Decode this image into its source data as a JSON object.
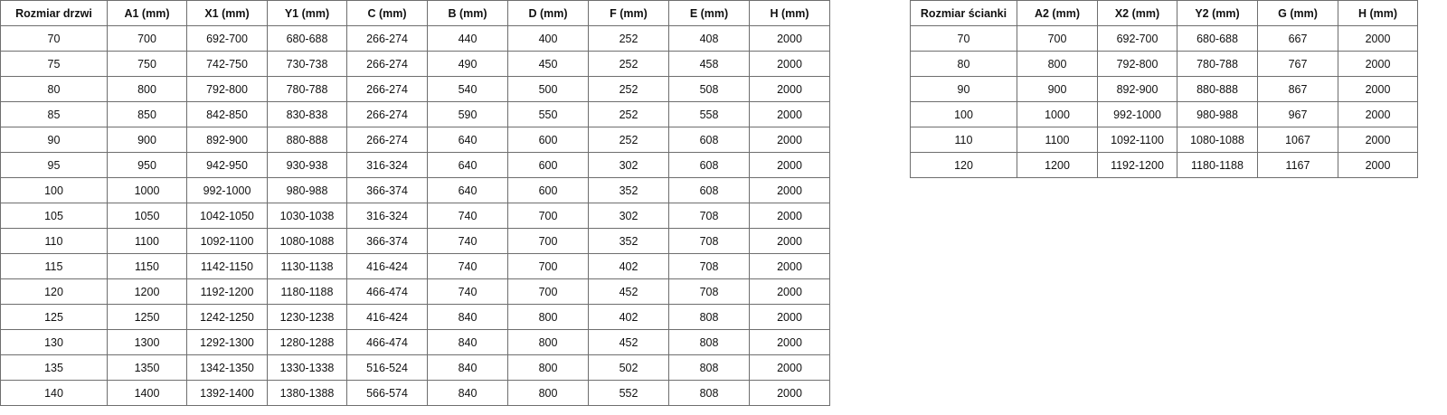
{
  "doors_table": {
    "headers": [
      "Rozmiar drzwi",
      "A1 (mm)",
      "X1 (mm)",
      "Y1 (mm)",
      "C (mm)",
      "B (mm)",
      "D (mm)",
      "F (mm)",
      "E (mm)",
      "H (mm)"
    ],
    "rows": [
      [
        "70",
        "700",
        "692-700",
        "680-688",
        "266-274",
        "440",
        "400",
        "252",
        "408",
        "2000"
      ],
      [
        "75",
        "750",
        "742-750",
        "730-738",
        "266-274",
        "490",
        "450",
        "252",
        "458",
        "2000"
      ],
      [
        "80",
        "800",
        "792-800",
        "780-788",
        "266-274",
        "540",
        "500",
        "252",
        "508",
        "2000"
      ],
      [
        "85",
        "850",
        "842-850",
        "830-838",
        "266-274",
        "590",
        "550",
        "252",
        "558",
        "2000"
      ],
      [
        "90",
        "900",
        "892-900",
        "880-888",
        "266-274",
        "640",
        "600",
        "252",
        "608",
        "2000"
      ],
      [
        "95",
        "950",
        "942-950",
        "930-938",
        "316-324",
        "640",
        "600",
        "302",
        "608",
        "2000"
      ],
      [
        "100",
        "1000",
        "992-1000",
        "980-988",
        "366-374",
        "640",
        "600",
        "352",
        "608",
        "2000"
      ],
      [
        "105",
        "1050",
        "1042-1050",
        "1030-1038",
        "316-324",
        "740",
        "700",
        "302",
        "708",
        "2000"
      ],
      [
        "110",
        "1100",
        "1092-1100",
        "1080-1088",
        "366-374",
        "740",
        "700",
        "352",
        "708",
        "2000"
      ],
      [
        "115",
        "1150",
        "1142-1150",
        "1130-1138",
        "416-424",
        "740",
        "700",
        "402",
        "708",
        "2000"
      ],
      [
        "120",
        "1200",
        "1192-1200",
        "1180-1188",
        "466-474",
        "740",
        "700",
        "452",
        "708",
        "2000"
      ],
      [
        "125",
        "1250",
        "1242-1250",
        "1230-1238",
        "416-424",
        "840",
        "800",
        "402",
        "808",
        "2000"
      ],
      [
        "130",
        "1300",
        "1292-1300",
        "1280-1288",
        "466-474",
        "840",
        "800",
        "452",
        "808",
        "2000"
      ],
      [
        "135",
        "1350",
        "1342-1350",
        "1330-1338",
        "516-524",
        "840",
        "800",
        "502",
        "808",
        "2000"
      ],
      [
        "140",
        "1400",
        "1392-1400",
        "1380-1388",
        "566-574",
        "840",
        "800",
        "552",
        "808",
        "2000"
      ]
    ]
  },
  "walls_table": {
    "headers": [
      "Rozmiar ścianki",
      "A2 (mm)",
      "X2 (mm)",
      "Y2 (mm)",
      "G (mm)",
      "H (mm)"
    ],
    "rows": [
      [
        "70",
        "700",
        "692-700",
        "680-688",
        "667",
        "2000"
      ],
      [
        "80",
        "800",
        "792-800",
        "780-788",
        "767",
        "2000"
      ],
      [
        "90",
        "900",
        "892-900",
        "880-888",
        "867",
        "2000"
      ],
      [
        "100",
        "1000",
        "992-1000",
        "980-988",
        "967",
        "2000"
      ],
      [
        "110",
        "1100",
        "1092-1100",
        "1080-1088",
        "1067",
        "2000"
      ],
      [
        "120",
        "1200",
        "1192-1200",
        "1180-1188",
        "1167",
        "2000"
      ]
    ]
  }
}
